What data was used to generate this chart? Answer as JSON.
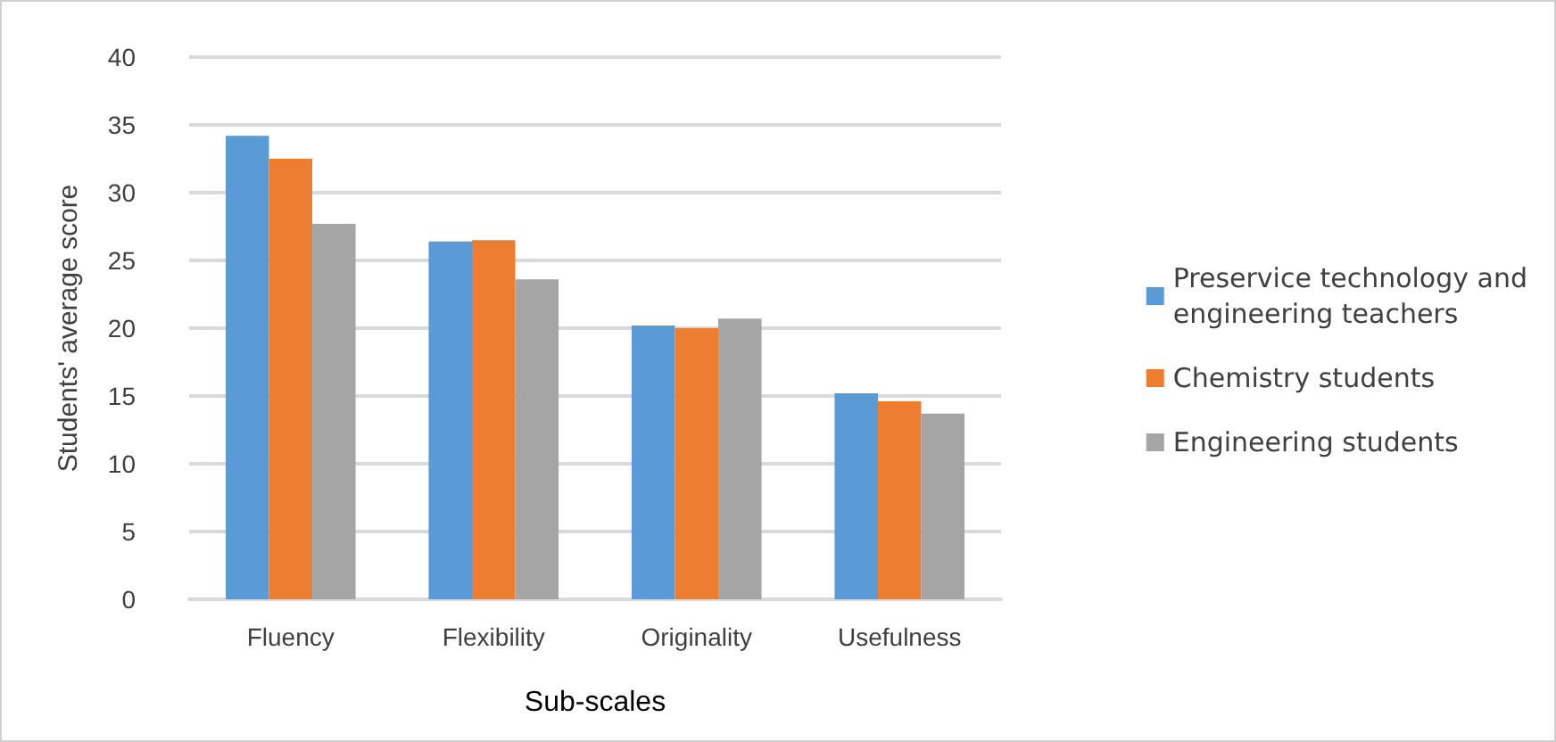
{
  "chart_data": {
    "type": "bar",
    "xlabel": "Sub-scales",
    "ylabel": "Students' average score",
    "categories": [
      "Fluency",
      "Flexibility",
      "Originality",
      "Usefulness"
    ],
    "series": [
      {
        "name": "Preservice technology and engineering teachers",
        "color": "#5b9bd5",
        "values": [
          34.2,
          26.4,
          20.2,
          15.2
        ]
      },
      {
        "name": "Chemistry students",
        "color": "#ed7d31",
        "values": [
          32.5,
          26.5,
          20.0,
          14.6
        ]
      },
      {
        "name": "Engineering students",
        "color": "#a5a5a5",
        "values": [
          27.7,
          23.6,
          20.7,
          13.7
        ]
      }
    ],
    "ylim": [
      0,
      40
    ],
    "yticks": [
      0,
      5,
      10,
      15,
      20,
      25,
      30,
      35,
      40
    ],
    "grid": "y",
    "legend": "right"
  }
}
